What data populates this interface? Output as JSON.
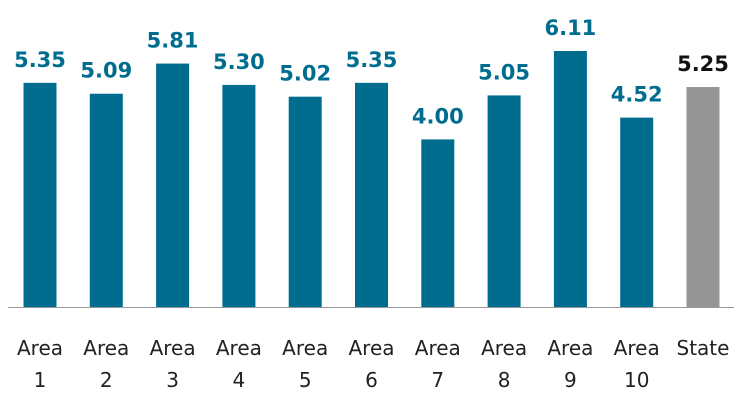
{
  "chart_data": {
    "type": "bar",
    "categories": [
      [
        "Area",
        "1"
      ],
      [
        "Area",
        "2"
      ],
      [
        "Area",
        "3"
      ],
      [
        "Area",
        "4"
      ],
      [
        "Area",
        "5"
      ],
      [
        "Area",
        "6"
      ],
      [
        "Area",
        "7"
      ],
      [
        "Area",
        "8"
      ],
      [
        "Area",
        "9"
      ],
      [
        "Area",
        "10"
      ],
      [
        "State"
      ]
    ],
    "values": [
      5.35,
      5.09,
      5.81,
      5.3,
      5.02,
      5.35,
      4.0,
      5.05,
      6.11,
      4.52,
      5.25
    ],
    "value_labels": [
      "5.35",
      "5.09",
      "5.81",
      "5.30",
      "5.02",
      "5.35",
      "4.00",
      "5.05",
      "6.11",
      "4.52",
      "5.25"
    ],
    "highlight_index": 10,
    "colors": {
      "bar": "#006d8f",
      "highlight_bar": "#959595",
      "label": "#006d8f",
      "highlight_label": "#111111",
      "axis": "#999999"
    },
    "ylim": [
      0,
      6.11
    ],
    "title": "",
    "xlabel": "",
    "ylabel": "",
    "grid": false,
    "legend": "none"
  }
}
